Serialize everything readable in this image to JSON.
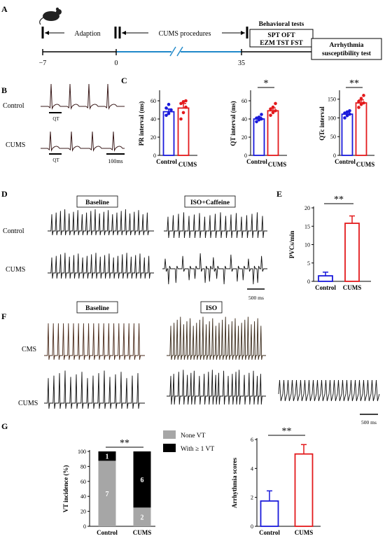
{
  "panel_labels": {
    "a": "A",
    "b": "B",
    "c": "C",
    "d": "D",
    "e": "E",
    "f": "F",
    "g": "G"
  },
  "timeline": {
    "adaption_label": "Adaption",
    "cums_label": "CUMS  procedures",
    "behavioral_title": "Behavioral tests",
    "behavioral_line1": "SPT OFT",
    "behavioral_line2": "EZM TST FST",
    "arrhythmia_line1": "Arrhythmia",
    "arrhythmia_line2": "susceptibility test",
    "ticks": [
      "−7",
      "0",
      "35"
    ]
  },
  "panel_b": {
    "row1": "Control",
    "row2": "CUMS",
    "qt1": "QT",
    "qt2": "QT",
    "scale": "100ms"
  },
  "panel_d": {
    "baseline": "Baseline",
    "iso_caffeine": "ISO+Caffeine",
    "row1": "Control",
    "row2": "CUMS",
    "scale": "500 ms"
  },
  "panel_f": {
    "baseline": "Baseline",
    "iso": "ISO",
    "row1": "CMS",
    "row2": "CUMS",
    "scale": "500 ms"
  },
  "colors": {
    "control": "#1a1adb",
    "cums": "#e31a1c",
    "none_vt": "#a6a6a6",
    "with_vt": "#000000"
  },
  "chart_data": [
    {
      "id": "pr",
      "type": "bar",
      "categories": [
        "Control",
        "CUMS"
      ],
      "values": [
        48,
        52
      ],
      "errors": [
        3,
        5
      ],
      "points": [
        [
          44,
          46,
          50,
          52,
          56
        ],
        [
          40,
          47,
          53,
          57,
          59,
          60
        ]
      ],
      "ylabel": "PR interval (ms)",
      "ylim": [
        0,
        70
      ],
      "yticks": [
        0,
        20,
        40,
        60
      ],
      "sig": ""
    },
    {
      "id": "qt",
      "type": "bar",
      "categories": [
        "Control",
        "CUMS"
      ],
      "values": [
        40,
        49
      ],
      "errors": [
        2,
        3
      ],
      "points": [
        [
          37,
          39,
          40,
          41,
          42,
          45
        ],
        [
          44,
          47,
          49,
          51,
          53,
          57
        ]
      ],
      "ylabel": "QT interval (ms)",
      "ylim": [
        0,
        70
      ],
      "yticks": [
        0,
        20,
        40,
        60
      ],
      "sig": "*"
    },
    {
      "id": "qtc",
      "type": "bar",
      "categories": [
        "Control",
        "CUMS"
      ],
      "values": [
        110,
        140
      ],
      "errors": [
        5,
        8
      ],
      "points": [
        [
          100,
          106,
          110,
          113,
          116,
          119
        ],
        [
          128,
          136,
          140,
          144,
          152,
          160
        ]
      ],
      "ylabel": "QTc interval",
      "ylim": [
        0,
        170
      ],
      "yticks": [
        0,
        50,
        100,
        150
      ],
      "sig": "**"
    },
    {
      "id": "pvc",
      "type": "bar",
      "categories": [
        "Control",
        "CUMS"
      ],
      "values": [
        1.5,
        15.8
      ],
      "errors": [
        1.0,
        2.0
      ],
      "ylabel": "PVCs/min",
      "ylim": [
        0,
        20
      ],
      "yticks": [
        0,
        5,
        10,
        15,
        20
      ],
      "sig": "**"
    },
    {
      "id": "vt",
      "type": "bar",
      "stacked": true,
      "categories": [
        "Control",
        "CUMS"
      ],
      "series": [
        {
          "name": "None VT",
          "values": [
            87.5,
            25
          ],
          "counts": [
            "7",
            "2"
          ]
        },
        {
          "name": "With  ≥  1 VT",
          "values": [
            12.5,
            75
          ],
          "counts": [
            "1",
            "6"
          ]
        }
      ],
      "ylabel": "VT incidence (%)",
      "ylim": [
        0,
        100
      ],
      "yticks": [
        0,
        20,
        40,
        60,
        80,
        100
      ],
      "sig": "**"
    },
    {
      "id": "arr",
      "type": "bar",
      "categories": [
        "Control",
        "CUMS"
      ],
      "values": [
        1.75,
        5.0
      ],
      "errors": [
        0.7,
        0.65
      ],
      "ylabel": "Arrhythmia scores",
      "ylim": [
        0,
        6
      ],
      "yticks": [
        0,
        2,
        4,
        6
      ],
      "sig": "**"
    }
  ]
}
